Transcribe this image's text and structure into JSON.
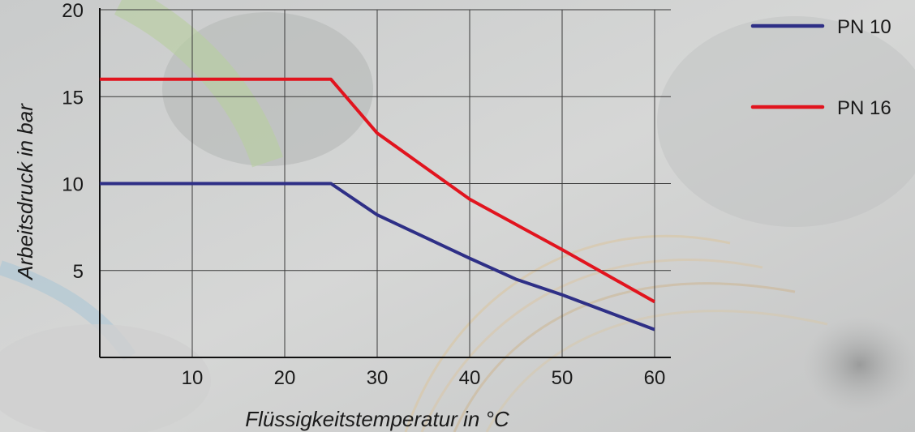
{
  "chart_data": {
    "type": "line",
    "xlabel": "Flüssigkeitstemperatur in °C",
    "ylabel": "Arbeitsdruck in bar",
    "xlim": [
      0,
      60
    ],
    "ylim": [
      0,
      20
    ],
    "x_ticks": [
      10,
      20,
      30,
      40,
      50,
      60
    ],
    "y_ticks": [
      5,
      10,
      15,
      20
    ],
    "grid": true,
    "legend_position": "top-right",
    "series": [
      {
        "name": "PN 10",
        "color": "#2e2f86",
        "x": [
          0,
          25,
          30,
          40,
          45,
          50,
          60
        ],
        "y": [
          10,
          10,
          8.2,
          5.7,
          4.5,
          3.6,
          1.6
        ]
      },
      {
        "name": "PN 16",
        "color": "#e1141e",
        "x": [
          0,
          25,
          30,
          40,
          50,
          60
        ],
        "y": [
          16,
          16,
          12.9,
          9.1,
          6.2,
          3.2
        ]
      }
    ]
  }
}
